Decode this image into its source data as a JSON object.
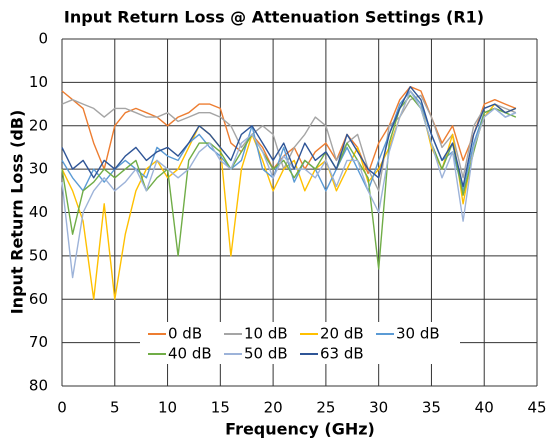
{
  "chart_data": {
    "type": "line",
    "title": "Input Return Loss @ Attenuation Settings (R1)",
    "x_label": "Frequency (GHz)",
    "y_label": "Input Return Loss (dB)",
    "x": [
      0,
      1,
      2,
      3,
      4,
      5,
      6,
      7,
      8,
      9,
      10,
      11,
      12,
      13,
      14,
      15,
      16,
      17,
      18,
      19,
      20,
      21,
      22,
      23,
      24,
      25,
      26,
      27,
      28,
      29,
      30,
      31,
      32,
      33,
      34,
      35,
      36,
      37,
      38,
      39,
      40,
      41,
      42,
      43
    ],
    "series": [
      {
        "name": "0 dB",
        "color": "#ed7d31",
        "values": [
          12,
          14,
          16,
          24,
          30,
          20,
          17,
          16,
          17,
          18,
          20,
          18,
          17,
          15,
          15,
          16,
          24,
          26,
          22,
          25,
          30,
          27,
          25,
          30,
          26,
          24,
          28,
          22,
          25,
          31,
          24,
          20,
          14,
          11,
          12,
          18,
          24,
          20,
          28,
          22,
          15,
          14,
          15,
          16
        ]
      },
      {
        "name": "10 dB",
        "color": "#a5a5a5",
        "values": [
          15,
          14,
          15,
          16,
          18,
          16,
          16,
          17,
          18,
          18,
          17,
          19,
          18,
          17,
          17,
          18,
          20,
          25,
          22,
          20,
          22,
          30,
          25,
          22,
          18,
          20,
          28,
          24,
          22,
          30,
          35,
          20,
          18,
          14,
          13,
          18,
          25,
          22,
          32,
          20,
          16,
          15,
          16,
          17
        ]
      },
      {
        "name": "20 dB",
        "color": "#ffc000",
        "values": [
          30,
          35,
          42,
          60,
          38,
          60,
          45,
          35,
          30,
          28,
          32,
          30,
          25,
          20,
          22,
          25,
          50,
          30,
          22,
          28,
          35,
          30,
          28,
          35,
          30,
          28,
          35,
          30,
          25,
          33,
          30,
          25,
          18,
          12,
          15,
          25,
          30,
          22,
          38,
          25,
          18,
          15,
          17,
          16
        ]
      },
      {
        "name": "30 dB",
        "color": "#5b9bd5",
        "values": [
          28,
          32,
          35,
          30,
          33,
          30,
          28,
          30,
          32,
          25,
          27,
          28,
          24,
          22,
          25,
          27,
          30,
          28,
          20,
          30,
          32,
          25,
          33,
          28,
          30,
          35,
          30,
          25,
          30,
          35,
          28,
          22,
          15,
          12,
          15,
          22,
          28,
          26,
          35,
          24,
          17,
          16,
          18,
          17
        ]
      },
      {
        "name": "40 dB",
        "color": "#70ad47",
        "values": [
          30,
          45,
          35,
          33,
          30,
          32,
          30,
          28,
          35,
          32,
          30,
          50,
          28,
          24,
          24,
          26,
          30,
          26,
          22,
          26,
          30,
          28,
          32,
          28,
          30,
          26,
          30,
          24,
          28,
          32,
          53,
          24,
          16,
          13,
          16,
          24,
          30,
          24,
          36,
          26,
          17,
          16,
          17,
          18
        ]
      },
      {
        "name": "50 dB",
        "color": "#9db3d9",
        "values": [
          33,
          55,
          40,
          35,
          32,
          35,
          33,
          30,
          35,
          28,
          30,
          32,
          30,
          26,
          24,
          28,
          30,
          24,
          22,
          26,
          32,
          27,
          30,
          30,
          32,
          28,
          34,
          28,
          28,
          35,
          40,
          26,
          18,
          12,
          16,
          24,
          32,
          26,
          42,
          25,
          18,
          16,
          18,
          17
        ]
      },
      {
        "name": "63 dB",
        "color": "#2f5597",
        "values": [
          25,
          30,
          28,
          32,
          28,
          30,
          27,
          25,
          28,
          26,
          25,
          27,
          24,
          20,
          22,
          25,
          28,
          22,
          20,
          24,
          28,
          24,
          30,
          24,
          28,
          26,
          30,
          22,
          26,
          30,
          32,
          22,
          16,
          11,
          14,
          22,
          28,
          24,
          34,
          22,
          16,
          15,
          17,
          16
        ]
      }
    ],
    "xlim": [
      0,
      45
    ],
    "xticks": [
      0,
      5,
      10,
      15,
      20,
      25,
      30,
      35,
      40,
      45
    ],
    "ylim": [
      0,
      80
    ],
    "yticks": [
      0,
      10,
      20,
      30,
      40,
      50,
      60,
      70,
      80
    ],
    "y_inverted": true,
    "grid": true,
    "legend": "bottom"
  }
}
